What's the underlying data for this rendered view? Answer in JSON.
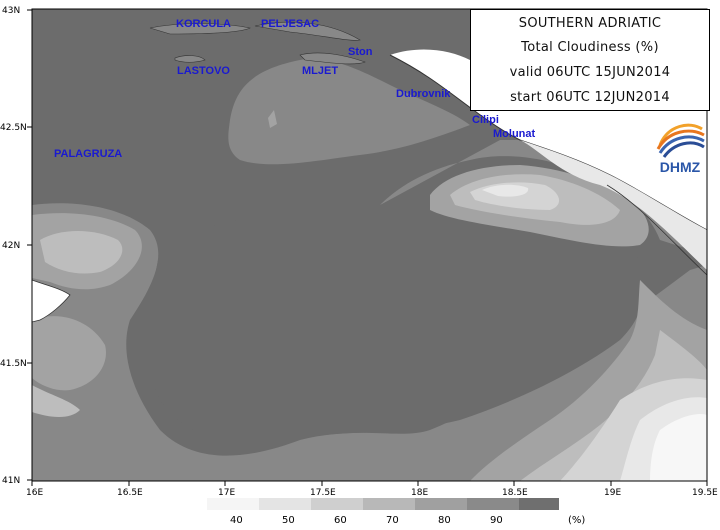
{
  "info": {
    "region": "SOUTHERN ADRIATIC",
    "field": "Total Cloudiness (%)",
    "valid": "valid 06UTC 15JUN2014",
    "start": "start 06UTC 12JUN2014"
  },
  "logo": {
    "text": "DHMZ",
    "icon": "dhmz-swirl-logo"
  },
  "places": [
    {
      "name": "KORCULA"
    },
    {
      "name": "PELJESAC"
    },
    {
      "name": "Ston"
    },
    {
      "name": "LASTOVO"
    },
    {
      "name": "MLJET"
    },
    {
      "name": "Dubrovnik"
    },
    {
      "name": "Cilipi"
    },
    {
      "name": "Molunat"
    },
    {
      "name": "PALAGRUZA"
    }
  ],
  "axes": {
    "lat_labels": [
      "43N",
      "42.5N",
      "42N",
      "41.5N",
      "41N"
    ],
    "lon_labels": [
      "16E",
      "16.5E",
      "17E",
      "17.5E",
      "18E",
      "18.5E",
      "19E",
      "19.5E"
    ]
  },
  "legend": {
    "labels": [
      "40",
      "50",
      "60",
      "70",
      "80",
      "90"
    ],
    "unit": "(%)",
    "colors": [
      "#f5f5f5",
      "#e4e4e4",
      "#cfcfcf",
      "#b8b8b8",
      "#a0a0a0",
      "#8a8a8a",
      "#6f6f6f"
    ]
  },
  "colors": {
    "c90": "#6c6c6c",
    "c80": "#888888",
    "c70": "#a3a3a3",
    "c60": "#bdbdbd",
    "c50": "#d4d4d4",
    "c40": "#e8e8e8",
    "clear": "#f7f7f7",
    "land": "#ffffff",
    "place_text": "#1a1ad0"
  }
}
